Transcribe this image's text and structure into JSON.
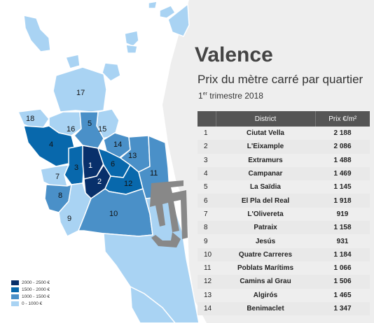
{
  "title": "Valence",
  "subtitle": "Prix du mètre carré par quartier",
  "period": {
    "ordinal": "1",
    "suffix": "er",
    "rest": " trimestre 2018"
  },
  "table": {
    "headers": [
      "",
      "District",
      "Prix €/m²"
    ],
    "rows": [
      {
        "num": "1",
        "district": "Ciutat Vella",
        "price": "2 188"
      },
      {
        "num": "2",
        "district": "L'Eixample",
        "price": "2 086"
      },
      {
        "num": "3",
        "district": "Extramurs",
        "price": "1 488"
      },
      {
        "num": "4",
        "district": "Campanar",
        "price": "1 469"
      },
      {
        "num": "5",
        "district": "La Saïdia",
        "price": "1 145"
      },
      {
        "num": "6",
        "district": "El Pla del Real",
        "price": "1 918"
      },
      {
        "num": "7",
        "district": "L'Olivereta",
        "price": "919"
      },
      {
        "num": "8",
        "district": "Patraix",
        "price": "1 158"
      },
      {
        "num": "9",
        "district": "Jesús",
        "price": "931"
      },
      {
        "num": "10",
        "district": "Quatre Carreres",
        "price": "1 184"
      },
      {
        "num": "11",
        "district": "Poblats Marítims",
        "price": "1 066"
      },
      {
        "num": "12",
        "district": "Camins al Grau",
        "price": "1 506"
      },
      {
        "num": "13",
        "district": "Algirós",
        "price": "1 465"
      },
      {
        "num": "14",
        "district": "Benimaclet",
        "price": "1 347"
      }
    ]
  },
  "legend": [
    {
      "label": "2000 - 2500 €",
      "color": "#08306b"
    },
    {
      "label": "1500 - 2000 €",
      "color": "#0868ac"
    },
    {
      "label": "1000 - 1500 €",
      "color": "#4a90c8"
    },
    {
      "label": "0 - 1000 €",
      "color": "#a9d3f3"
    }
  ],
  "map": {
    "colors": {
      "sea": "#eeeeee",
      "outline": "#ffffff",
      "port": "#888888"
    },
    "district_labels": [
      "1",
      "2",
      "3",
      "4",
      "5",
      "6",
      "7",
      "8",
      "9",
      "10",
      "11",
      "12",
      "13",
      "14",
      "15",
      "16",
      "17",
      "18"
    ]
  }
}
